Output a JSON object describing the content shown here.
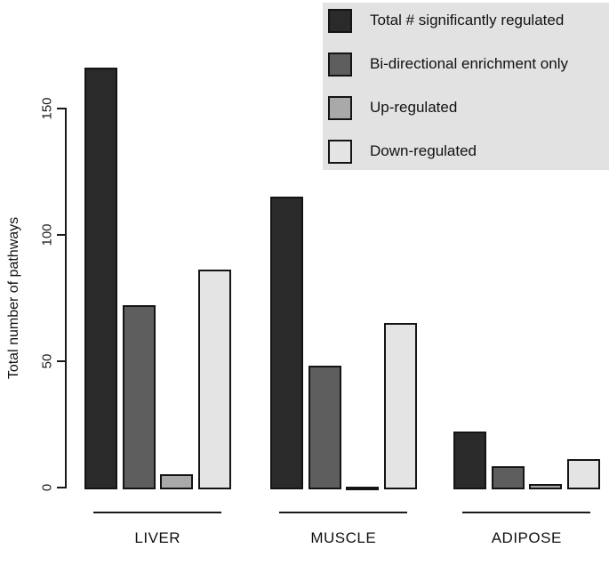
{
  "colors": {
    "series_total": "#2a2a2a",
    "series_bidirectional": "#5e5e5e",
    "series_up": "#a9a9a9",
    "series_down": "#e4e4e4",
    "legend_background": "#e2e2e2",
    "axis": "#1a1a1a"
  },
  "chart_data": {
    "type": "bar",
    "title": "",
    "xlabel": "",
    "ylabel": "Total number of pathways",
    "ylim": [
      0,
      150
    ],
    "yticks": [
      0,
      50,
      100,
      150
    ],
    "grid": false,
    "legend_position": "top-right",
    "categories": [
      "LIVER",
      "MUSCLE",
      "ADIPOSE"
    ],
    "series": [
      {
        "name": "Total # significantly regulated",
        "color": "#2a2a2a",
        "values": [
          167,
          116,
          23
        ]
      },
      {
        "name": "Bi-directional enrichment only",
        "color": "#5e5e5e",
        "values": [
          73,
          49,
          9
        ]
      },
      {
        "name": "Up-regulated",
        "color": "#a9a9a9",
        "values": [
          6,
          0.5,
          2
        ]
      },
      {
        "name": "Down-regulated",
        "color": "#e4e4e4",
        "values": [
          87,
          66,
          12
        ]
      }
    ]
  }
}
